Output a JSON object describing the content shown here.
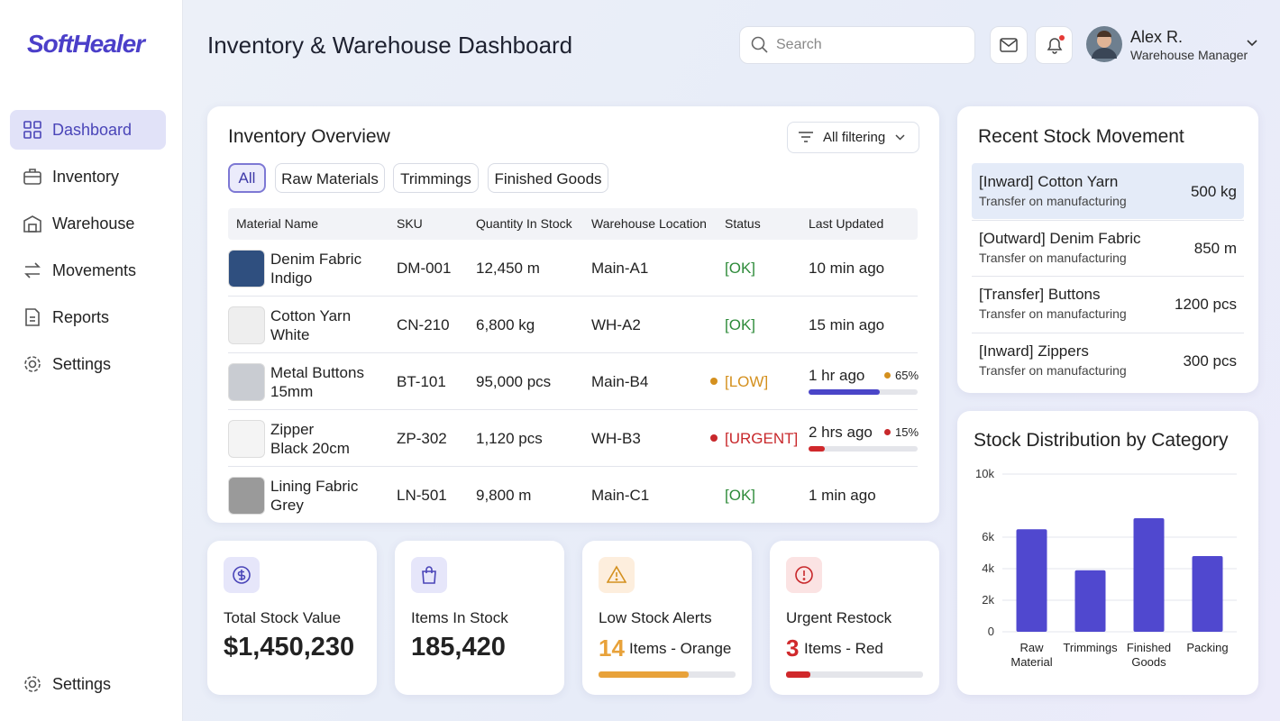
{
  "brand": "SoftHealer",
  "nav": [
    "Dashboard",
    "Inventory",
    "Warehouse",
    "Movements",
    "Reports",
    "Settings"
  ],
  "nav_footer": "Settings",
  "header": {
    "title": "Inventory & Warehouse Dashboard",
    "search_placeholder": "Search",
    "user_name": "Alex R.",
    "user_role": "Warehouse Manager"
  },
  "inventory": {
    "title": "Inventory Overview",
    "filter": "All filtering",
    "tabs": [
      "All",
      "Raw Materials",
      "Trimmings",
      "Finished Goods"
    ],
    "columns": [
      "Material Name",
      "SKU",
      "Quantity In Stock",
      "Warehouse Location",
      "Status",
      "Last Updated"
    ],
    "rows": [
      {
        "name": "Denim Fabric",
        "variant": "Indigo",
        "sku": "DM-001",
        "quantity": "12,450 m",
        "location": "Main-A1",
        "status": "[OK]",
        "status_color": "#2e8b3a",
        "updated": "10 min ago"
      },
      {
        "name": "Cotton Yarn",
        "variant": "White",
        "sku": "CN-210",
        "quantity": "6,800 kg",
        "location": "WH-A2",
        "status": "[OK]",
        "status_color": "#2e8b3a",
        "updated": "15 min ago"
      },
      {
        "name": "Metal Buttons",
        "variant": "15mm",
        "sku": "BT-101",
        "quantity": "95,000 pcs",
        "location": "Main-B4",
        "status": "[LOW]",
        "status_color": "#d4901e",
        "updated": "1 hr ago",
        "progress": 65,
        "progress_label": "65%",
        "progress_color": "#4a45c8"
      },
      {
        "name": "Zipper",
        "variant": "Black 20cm",
        "sku": "ZP-302",
        "quantity": "1,120 pcs",
        "location": "WH-B3",
        "status": "[URGENT]",
        "status_color": "#c8282b",
        "updated": "2 hrs ago",
        "progress": 15,
        "progress_label": "15%",
        "progress_color": "#d0282b"
      },
      {
        "name": "Lining Fabric",
        "variant": "Grey",
        "sku": "LN-501",
        "quantity": "9,800 m",
        "location": "Main-C1",
        "status": "[OK]",
        "status_color": "#2e8b3a",
        "updated": "1 min ago"
      }
    ]
  },
  "stats": [
    {
      "label": "Total Stock Value",
      "value": "$1,450,230"
    },
    {
      "label": "Items In Stock",
      "value": "185,420"
    },
    {
      "label": "Low Stock Alerts",
      "count": "14",
      "text": "Items - Orange",
      "color": "#e8a23a",
      "progress": 66
    },
    {
      "label": "Urgent Restock",
      "count": "3",
      "text": "Items - Red",
      "color": "#d0282b",
      "progress": 18
    }
  ],
  "movements": {
    "title": "Recent Stock Movement",
    "items": [
      {
        "title": "[Inward] Cotton Yarn",
        "subtitle": "Transfer on manufacturing",
        "quantity": "500 kg"
      },
      {
        "title": "[Outward] Denim Fabric",
        "subtitle": "Transfer on manufacturing",
        "quantity": "850 m"
      },
      {
        "title": "[Transfer] Buttons",
        "subtitle": "Transfer on manufacturing",
        "quantity": "1200 pcs"
      },
      {
        "title": "[Inward] Zippers",
        "subtitle": "Transfer on manufacturing",
        "quantity": "300 pcs"
      }
    ]
  },
  "stock_chart": {
    "type": "bar",
    "title": "Stock Distribution by Category",
    "categories": [
      "Raw Material",
      "Trimmings",
      "Finished Goods",
      "Packing"
    ],
    "values": [
      6500,
      3900,
      7200,
      4800
    ],
    "color": "#5048cf",
    "ylim": [
      0,
      10000
    ],
    "yticks": [
      0,
      {
        "value": 2000,
        "label": "2k"
      },
      {
        "value": 4000,
        "label": "4k"
      },
      {
        "value": 6000,
        "label": "6k"
      },
      {
        "value": 10000,
        "label": "10k"
      }
    ],
    "grid": true
  }
}
